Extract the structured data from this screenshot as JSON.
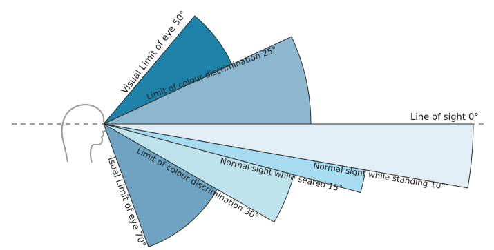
{
  "diagram": {
    "line_of_sight_label": "Line of sight 0°",
    "sectors": [
      {
        "key": "visual_up",
        "label": "Visual Limit of eye 50°",
        "from_deg": 25,
        "to_deg": 50,
        "color": "#1f82a8"
      },
      {
        "key": "colour_up",
        "label": "Limit of colour discrimination 25°",
        "from_deg": 0,
        "to_deg": 25,
        "color": "#8db6cf"
      },
      {
        "key": "visual_down",
        "label": "isual Limit of eye 70°",
        "from_deg": 30,
        "to_deg": 70,
        "color": "#6ea3c2"
      },
      {
        "key": "colour_down",
        "label": "Limit of colour discrimination 30°",
        "from_deg": 15,
        "to_deg": 30,
        "color": "#bfe3ec"
      },
      {
        "key": "seated",
        "label": "Normal sight while seated 15°",
        "from_deg": 10,
        "to_deg": 15,
        "color": "#a7dbef"
      },
      {
        "key": "standing",
        "label": "Normal sight while standing 10°",
        "from_deg": 0,
        "to_deg": 10,
        "color": "#e1eef6"
      }
    ]
  }
}
